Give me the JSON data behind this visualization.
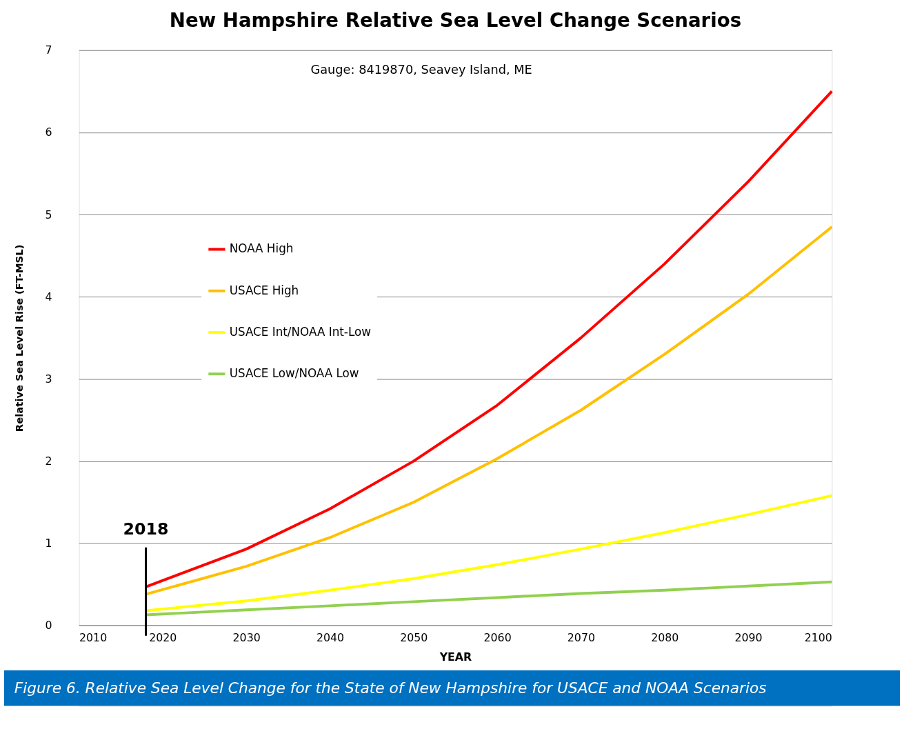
{
  "chart_data": {
    "type": "line",
    "title": "New Hampshire Relative Sea Level Change Scenarios",
    "xlabel": "YEAR",
    "ylabel": "Relative Sea Level Rise (FT-MSL)",
    "x": [
      2018,
      2030,
      2040,
      2050,
      2060,
      2070,
      2080,
      2090,
      2100
    ],
    "series": [
      {
        "name": "NOAA High",
        "color": "#ff0000",
        "values": [
          0.47,
          0.93,
          1.42,
          2.0,
          2.68,
          3.5,
          4.4,
          5.4,
          6.5
        ]
      },
      {
        "name": "USACE High",
        "color": "#ffc000",
        "values": [
          0.38,
          0.72,
          1.07,
          1.5,
          2.03,
          2.62,
          3.3,
          4.03,
          4.85
        ]
      },
      {
        "name": "USACE Int/NOAA Int-Low",
        "color": "#ffff00",
        "values": [
          0.18,
          0.3,
          0.43,
          0.57,
          0.74,
          0.93,
          1.13,
          1.35,
          1.58
        ]
      },
      {
        "name": "USACE Low/NOAA Low",
        "color": "#92d050",
        "values": [
          0.13,
          0.19,
          0.24,
          0.29,
          0.34,
          0.39,
          0.43,
          0.48,
          0.53
        ]
      }
    ],
    "xlim": [
      2010,
      2100
    ],
    "xticks": [
      2010,
      2020,
      2030,
      2040,
      2050,
      2060,
      2070,
      2080,
      2090,
      2100
    ],
    "ylim": [
      0,
      7
    ],
    "yticks": [
      0,
      1,
      2,
      3,
      4,
      5,
      6,
      7
    ],
    "grid": "y",
    "legend": "left",
    "line_style": "solid",
    "marker": "none",
    "ref_lines": [
      {
        "axis": "x",
        "value": 2018,
        "label": "2018",
        "color": "#000000"
      }
    ],
    "annotations": [
      "Gauge: 8419870, Seavey Island, ME",
      "Figure 6. Relative Sea Level Change for the State of New Hampshire for USACE and NOAA Scenarios"
    ]
  }
}
